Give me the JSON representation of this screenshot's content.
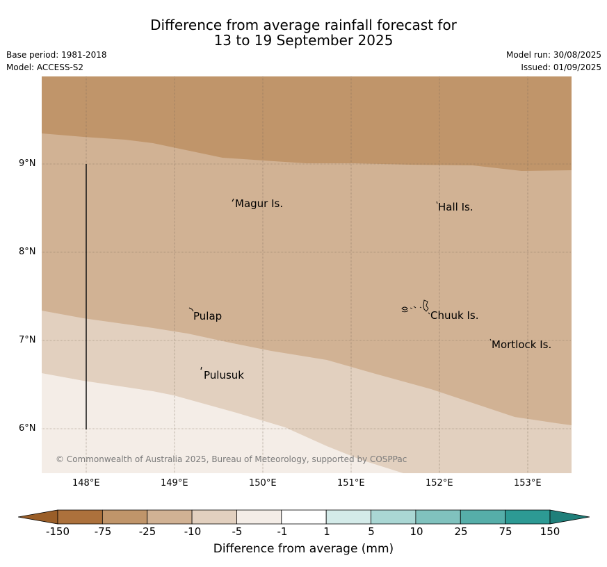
{
  "header": {
    "title_line1": "Difference from average rainfall forecast for",
    "title_line2": "13 to 19 September 2025",
    "base_period": "Base period: 1981-2018",
    "model": "Model: ACCESS-S2",
    "model_run": "Model run: 30/08/2025",
    "issued": "Issued: 01/09/2025"
  },
  "map": {
    "lon_ticks": [
      "148°E",
      "149°E",
      "150°E",
      "151°E",
      "152°E",
      "153°E"
    ],
    "lat_ticks": [
      "9°N",
      "8°N",
      "7°N",
      "6°N"
    ],
    "places": [
      {
        "name": "Magur Is."
      },
      {
        "name": "Hall Is."
      },
      {
        "name": "Pulap"
      },
      {
        "name": "Chuuk Is."
      },
      {
        "name": "Mortlock Is."
      },
      {
        "name": "Pulusuk"
      }
    ],
    "copyright": "© Commonwealth of Australia 2025, Bureau of Meteorology, supported by COSPPac",
    "band_colors": [
      "#c0956a",
      "#d1b294",
      "#e2d0bf",
      "#f4ede7"
    ]
  },
  "colorbar": {
    "title": "Difference from average (mm)",
    "labels": [
      "-150",
      "-75",
      "-25",
      "-10",
      "-5",
      "-1",
      "1",
      "5",
      "10",
      "25",
      "75",
      "150"
    ],
    "colors": [
      "#ac713c",
      "#c0956a",
      "#d1b294",
      "#e2d0bf",
      "#f4ede7",
      "#ffffff",
      "#d4ebe9",
      "#aad7d4",
      "#80c2be",
      "#56aea9",
      "#2d9a94"
    ],
    "extend_low_color": "#9a5e28",
    "extend_high_color": "#1f7f7a"
  }
}
